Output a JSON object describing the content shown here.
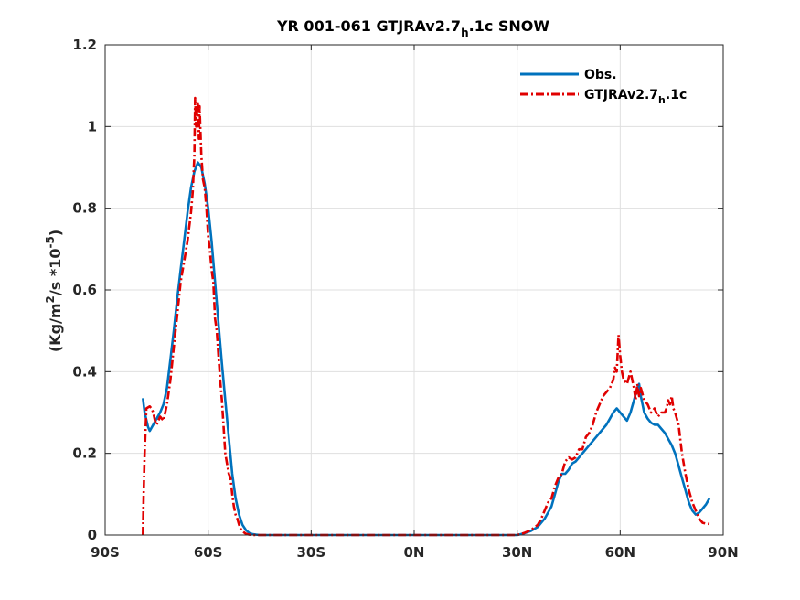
{
  "chart_data": {
    "type": "line",
    "title": "YR 001-061 GTJRAv2.7",
    "title_sub": "h",
    "title_suffix": ".1c SNOW",
    "ylabel_pre": "(Kg/m",
    "ylabel_sup1": "2",
    "ylabel_mid": "/s *10",
    "ylabel_sup2": "-5",
    "ylabel_post": ")",
    "xlim": [
      -90,
      90
    ],
    "ylim": [
      0,
      1.2
    ],
    "grid": true,
    "legend_position": "top-right",
    "x_ticks": [
      {
        "value": -90,
        "label": "90S"
      },
      {
        "value": -60,
        "label": "60S"
      },
      {
        "value": -30,
        "label": "30S"
      },
      {
        "value": 0,
        "label": "0N"
      },
      {
        "value": 30,
        "label": "30N"
      },
      {
        "value": 60,
        "label": "60N"
      },
      {
        "value": 90,
        "label": "90N"
      }
    ],
    "y_ticks": [
      {
        "value": 0,
        "label": "0"
      },
      {
        "value": 0.2,
        "label": "0.2"
      },
      {
        "value": 0.4,
        "label": "0.4"
      },
      {
        "value": 0.6,
        "label": "0.6"
      },
      {
        "value": 0.8,
        "label": "0.8"
      },
      {
        "value": 1.0,
        "label": "1"
      },
      {
        "value": 1.2,
        "label": "1.2"
      }
    ],
    "series": [
      {
        "name": "Obs.",
        "color": "#0072BD",
        "dash": "solid",
        "x": [
          -79,
          -78.5,
          -77.5,
          -77,
          -76,
          -75,
          -74,
          -73,
          -72,
          -71,
          -70,
          -69,
          -68,
          -67,
          -66,
          -65,
          -64,
          -63,
          -62,
          -61.5,
          -61,
          -60,
          -59,
          -58,
          -57,
          -56,
          -55,
          -54,
          -53,
          -52,
          -51,
          -50,
          -49,
          -48,
          -47,
          -46,
          -45,
          -40,
          -30,
          -20,
          -10,
          0,
          10,
          20,
          25,
          30,
          32,
          34,
          36,
          38,
          40,
          41,
          42,
          43,
          44,
          45,
          46,
          47,
          48,
          50,
          52,
          54,
          56,
          57,
          58,
          59,
          60,
          61,
          62,
          63,
          64,
          65,
          65.5,
          66,
          67,
          68,
          69,
          70,
          71,
          72,
          73,
          74,
          75,
          76,
          77,
          78,
          79,
          80,
          81,
          82,
          83,
          84,
          85,
          86
        ],
        "values": [
          0.335,
          0.3,
          0.265,
          0.255,
          0.27,
          0.285,
          0.3,
          0.32,
          0.36,
          0.43,
          0.5,
          0.58,
          0.65,
          0.72,
          0.79,
          0.85,
          0.89,
          0.912,
          0.9,
          0.88,
          0.86,
          0.8,
          0.72,
          0.62,
          0.52,
          0.42,
          0.33,
          0.24,
          0.15,
          0.09,
          0.05,
          0.025,
          0.012,
          0.005,
          0.002,
          0.001,
          0.0,
          0.0,
          0.0,
          0.0,
          0.0,
          0.0,
          0.0,
          0.0,
          0.0,
          0.0,
          0.004,
          0.01,
          0.02,
          0.04,
          0.07,
          0.1,
          0.13,
          0.15,
          0.15,
          0.16,
          0.175,
          0.18,
          0.19,
          0.21,
          0.23,
          0.25,
          0.27,
          0.285,
          0.3,
          0.31,
          0.3,
          0.29,
          0.28,
          0.3,
          0.33,
          0.36,
          0.37,
          0.34,
          0.3,
          0.285,
          0.275,
          0.27,
          0.27,
          0.26,
          0.25,
          0.235,
          0.22,
          0.2,
          0.17,
          0.14,
          0.11,
          0.08,
          0.06,
          0.05,
          0.055,
          0.065,
          0.075,
          0.09
        ]
      },
      {
        "name": "GTJRAv2.7",
        "name_sub": "h",
        "name_suffix": ".1c",
        "color": "#E00000",
        "dash": "dashdot",
        "x": [
          -79,
          -78.8,
          -78.5,
          -78,
          -77,
          -76.5,
          -76,
          -75.5,
          -75,
          -74.5,
          -74,
          -73,
          -72.5,
          -72,
          -71,
          -70,
          -69,
          -68,
          -67,
          -66,
          -65,
          -64.5,
          -64,
          -63.8,
          -63.5,
          -63,
          -62.7,
          -62.5,
          -62,
          -61.5,
          -61,
          -60.5,
          -60,
          -59.5,
          -59,
          -58.5,
          -58,
          -57.5,
          -57,
          -56.5,
          -56,
          -55,
          -54,
          -53.5,
          -53,
          -52.5,
          -52,
          -51.5,
          -51,
          -50.5,
          -50,
          -49.5,
          -49,
          -48,
          -47,
          -46,
          -45,
          -40,
          -30,
          -20,
          -10,
          0,
          10,
          20,
          25,
          30,
          32,
          34,
          36,
          37,
          38,
          39,
          40,
          41,
          42,
          43,
          44,
          45,
          46,
          47,
          48,
          49,
          50,
          51,
          52,
          53,
          54,
          55,
          56,
          57,
          58,
          58.5,
          59,
          59.5,
          60,
          60.5,
          61,
          62,
          63,
          64,
          64.5,
          65,
          65.5,
          66,
          67,
          68,
          69,
          70,
          71,
          72,
          73,
          73.5,
          74,
          74.5,
          75,
          75.5,
          76,
          77,
          78,
          79,
          80,
          81,
          82,
          83,
          84,
          85,
          86
        ],
        "values": [
          0.0,
          0.1,
          0.2,
          0.31,
          0.315,
          0.31,
          0.3,
          0.28,
          0.27,
          0.28,
          0.29,
          0.28,
          0.3,
          0.32,
          0.38,
          0.46,
          0.54,
          0.62,
          0.67,
          0.72,
          0.79,
          0.84,
          0.93,
          1.07,
          1.0,
          1.06,
          0.97,
          1.05,
          0.93,
          0.87,
          0.85,
          0.8,
          0.73,
          0.7,
          0.65,
          0.62,
          0.53,
          0.5,
          0.44,
          0.38,
          0.33,
          0.2,
          0.15,
          0.14,
          0.1,
          0.07,
          0.05,
          0.04,
          0.025,
          0.015,
          0.01,
          0.006,
          0.003,
          0.001,
          0.0,
          0.0,
          0.0,
          0.0,
          0.0,
          0.0,
          0.0,
          0.0,
          0.0,
          0.0,
          0.0,
          0.0,
          0.005,
          0.012,
          0.025,
          0.04,
          0.06,
          0.08,
          0.09,
          0.12,
          0.14,
          0.15,
          0.18,
          0.19,
          0.185,
          0.19,
          0.21,
          0.21,
          0.24,
          0.25,
          0.27,
          0.3,
          0.32,
          0.34,
          0.35,
          0.36,
          0.38,
          0.41,
          0.4,
          0.49,
          0.44,
          0.4,
          0.38,
          0.37,
          0.4,
          0.36,
          0.33,
          0.37,
          0.34,
          0.36,
          0.33,
          0.32,
          0.3,
          0.31,
          0.29,
          0.3,
          0.3,
          0.31,
          0.33,
          0.32,
          0.34,
          0.31,
          0.3,
          0.27,
          0.2,
          0.15,
          0.11,
          0.08,
          0.06,
          0.04,
          0.03,
          0.028,
          0.027
        ]
      }
    ]
  }
}
